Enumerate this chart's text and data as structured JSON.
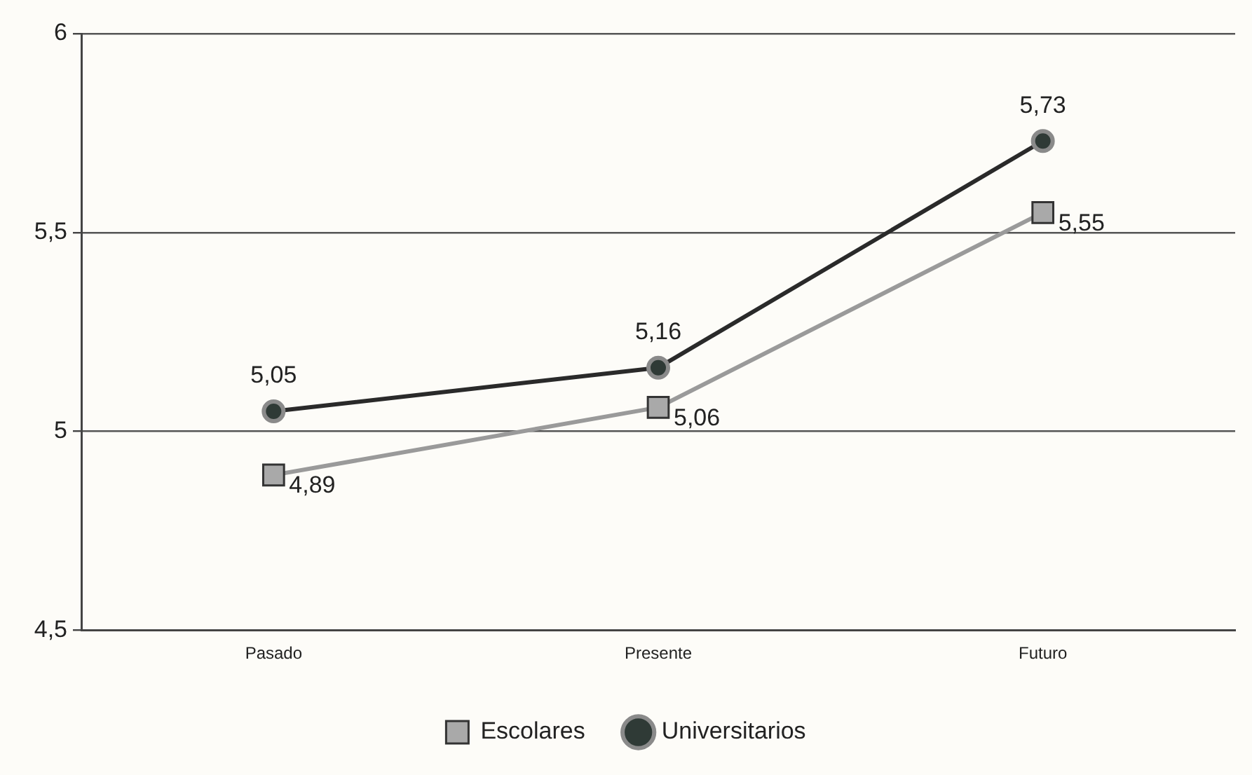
{
  "chart_data": {
    "type": "line",
    "categories": [
      "Pasado",
      "Presente",
      "Futuro"
    ],
    "series": [
      {
        "name": "Escolares",
        "color": "#9a9a9a",
        "marker": "square",
        "values": [
          4.89,
          5.06,
          5.55
        ],
        "value_labels": [
          "4,89",
          "5,06",
          "5,55"
        ]
      },
      {
        "name": "Universitarios",
        "color": "#2a2a2a",
        "marker": "circle",
        "values": [
          5.05,
          5.16,
          5.73
        ],
        "value_labels": [
          "5,05",
          "5,16",
          "5,73"
        ]
      }
    ],
    "ylim": [
      4.5,
      6
    ],
    "yticks": [
      {
        "value": 4.5,
        "label": "4,5"
      },
      5,
      {
        "value": 5.5,
        "label": "5,5"
      },
      6
    ],
    "grid": "y",
    "legend": "bottom"
  }
}
